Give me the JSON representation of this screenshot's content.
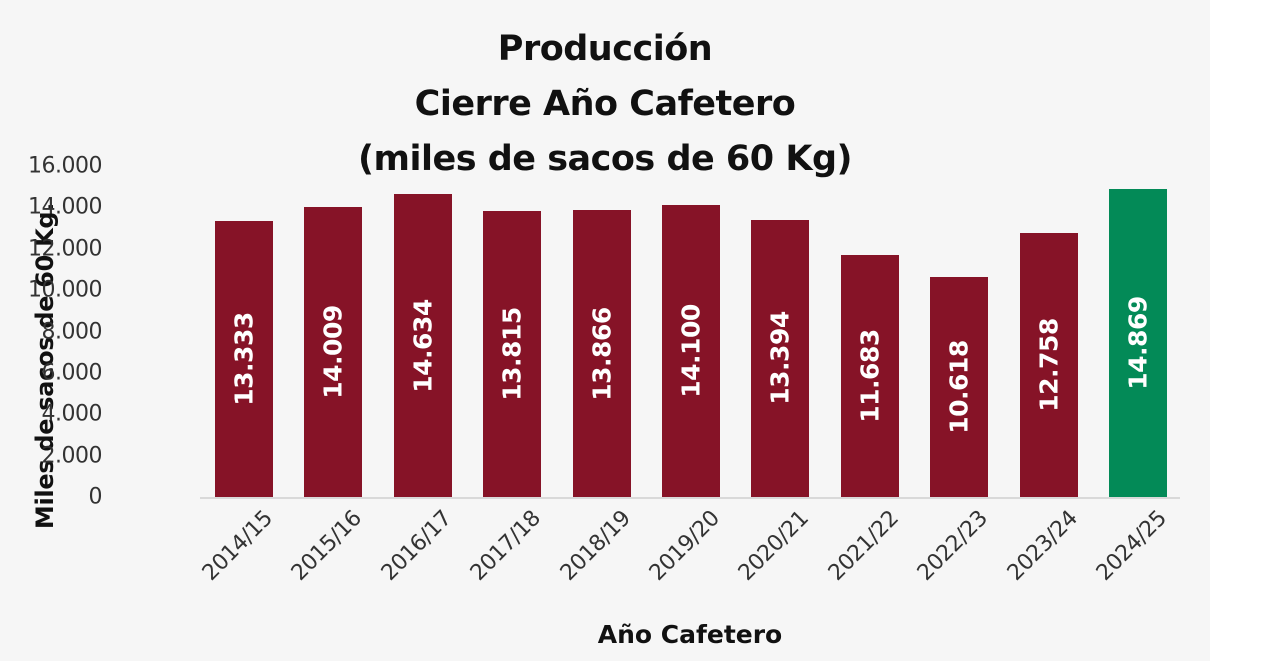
{
  "chart_data": {
    "type": "bar",
    "title": "Producción\nCierre Año Cafetero\n(miles de sacos de 60 Kg)",
    "title_lines": [
      "Producción",
      "Cierre Año Cafetero",
      "(miles de sacos de 60 Kg)"
    ],
    "xlabel": "Año Cafetero",
    "ylabel": "Miles de sacos de 60 Kg.",
    "categories": [
      "2014/15",
      "2015/16",
      "2016/17",
      "2017/18",
      "2018/19",
      "2019/20",
      "2020/21",
      "2021/22",
      "2022/23",
      "2023/24",
      "2024/25"
    ],
    "values": [
      13333,
      14009,
      14634,
      13815,
      13866,
      14100,
      13394,
      11683,
      10618,
      12758,
      14869
    ],
    "value_labels": [
      "13.333",
      "14.009",
      "14.634",
      "13.815",
      "13.866",
      "14.100",
      "13.394",
      "11.683",
      "10.618",
      "12.758",
      "14.869"
    ],
    "ylim": [
      0,
      16000
    ],
    "yticks": [
      0,
      2000,
      4000,
      6000,
      8000,
      10000,
      12000,
      14000,
      16000
    ],
    "ytick_labels": [
      "0",
      "2.000",
      "4.000",
      "6.000",
      "8.000",
      "10.000",
      "12.000",
      "14.000",
      "16.000"
    ],
    "grid": false,
    "legend": null,
    "colors": {
      "default": "#861327",
      "highlight": "#038a57",
      "highlight_index": 10
    }
  }
}
